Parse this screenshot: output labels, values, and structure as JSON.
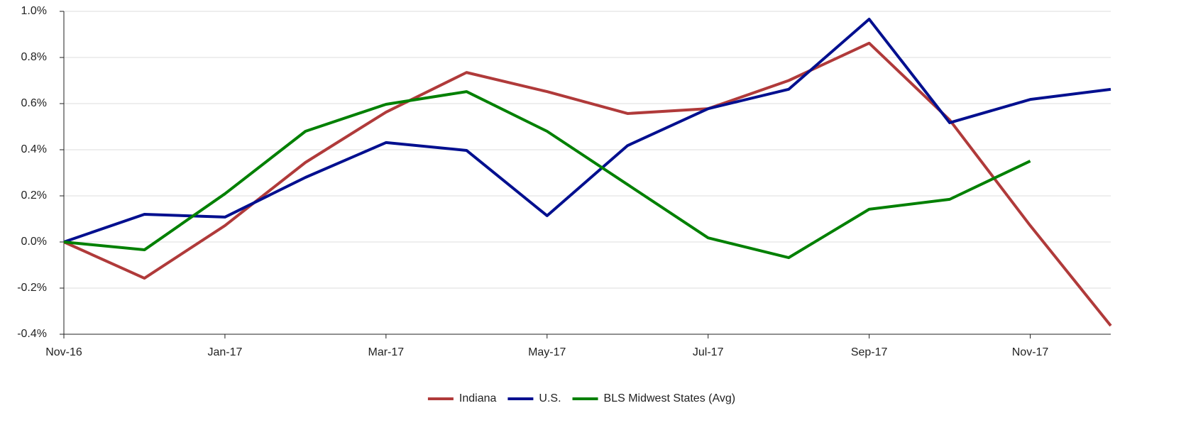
{
  "chart_data": {
    "type": "line",
    "categories": [
      "Nov-16",
      null,
      "Jan-17",
      null,
      "Mar-17",
      null,
      "May-17",
      null,
      "Jul-17",
      null,
      "Sep-17",
      null,
      "Nov-17",
      null
    ],
    "series": [
      {
        "name": "Indiana",
        "color": "#b03a3a",
        "values": [
          0,
          -0.157,
          0.071,
          0.345,
          0.563,
          0.735,
          0.652,
          0.557,
          0.578,
          0.7,
          0.862,
          0.529,
          0.071,
          -0.363
        ]
      },
      {
        "name": "U.S.",
        "color": "#000f8f",
        "values": [
          0,
          0.12,
          0.108,
          0.28,
          0.431,
          0.397,
          0.114,
          0.418,
          0.578,
          0.662,
          0.966,
          0.517,
          0.618,
          0.662
        ]
      },
      {
        "name": "BLS Midwest States (Avg)",
        "color": "#008000",
        "values": [
          0,
          -0.034,
          0.209,
          0.48,
          0.597,
          0.652,
          0.48,
          0.249,
          0.018,
          -0.068,
          0.142,
          0.185,
          0.351,
          null
        ]
      }
    ],
    "ylim": [
      -0.4,
      1.0
    ],
    "yticks": [
      {
        "value": -0.4,
        "label": "-0.4%"
      },
      {
        "value": -0.2,
        "label": "-0.2%"
      },
      {
        "value": 0,
        "label": "0.0%"
      },
      {
        "value": 0.2,
        "label": "0.2%"
      },
      {
        "value": 0.4,
        "label": "0.4%"
      },
      {
        "value": 0.6,
        "label": "0.6%"
      },
      {
        "value": 0.8,
        "label": "0.8%"
      },
      {
        "value": 1.0,
        "label": "1.0%"
      }
    ],
    "grid": true,
    "legend": "bottom"
  }
}
